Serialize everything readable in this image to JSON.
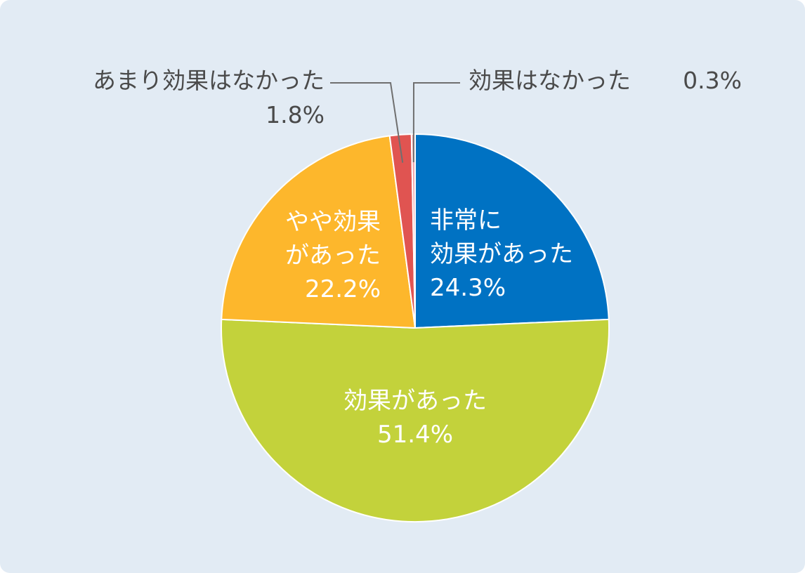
{
  "chart_data": {
    "type": "pie",
    "start_angle_deg": 0,
    "direction": "clockwise",
    "slices": [
      {
        "label": [
          "非常に",
          "効果があった"
        ],
        "value_text": "24.3%",
        "value": 24.3,
        "color": "#0072c3",
        "label_color": "#ffffff"
      },
      {
        "label": [
          "効果があった"
        ],
        "value_text": "51.4%",
        "value": 51.4,
        "color": "#c3d23b",
        "label_color": "#ffffff"
      },
      {
        "label": [
          "やや効果",
          "があった"
        ],
        "value_text": "22.2%",
        "value": 22.2,
        "color": "#fdb72c",
        "label_color": "#ffffff"
      },
      {
        "label": [
          "あまり効果はなかった"
        ],
        "value_text": "1.8%",
        "value": 1.8,
        "color": "#e05451",
        "label_color": "#4a4a4a"
      },
      {
        "label": [
          "効果はなかった"
        ],
        "value_text": "0.3%",
        "value": 0.3,
        "color": "#f1a8ad",
        "label_color": "#4a4a4a"
      }
    ]
  }
}
